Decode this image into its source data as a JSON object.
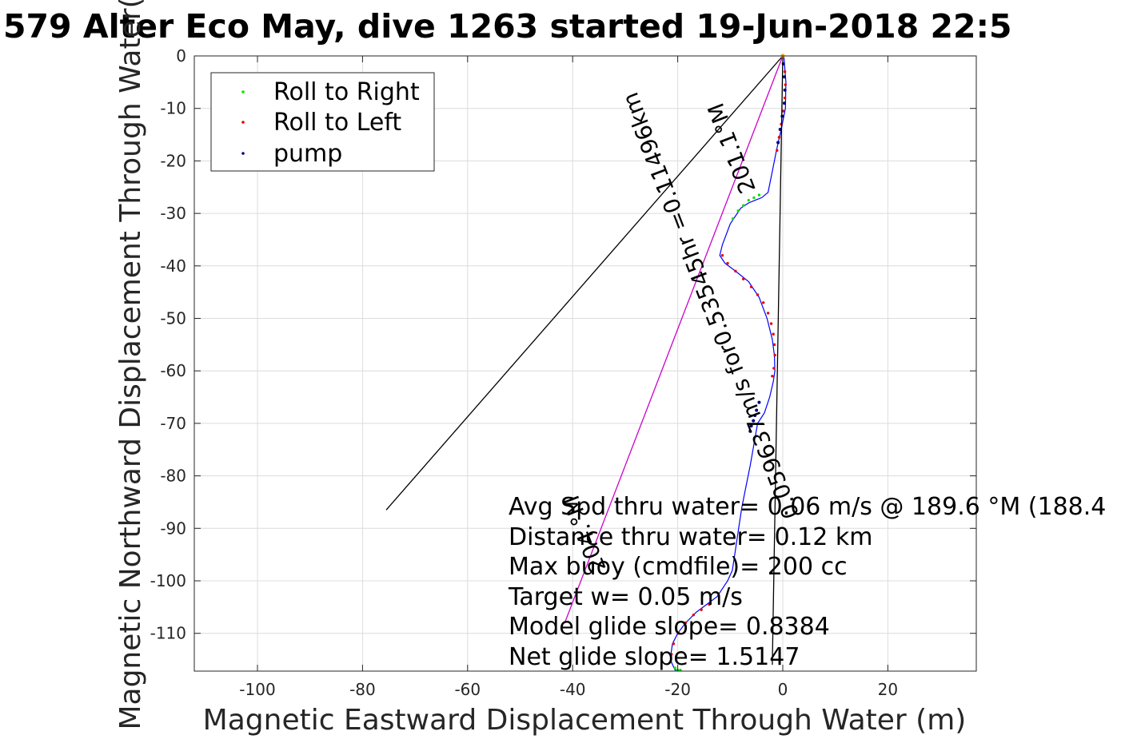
{
  "chart_data": {
    "type": "line",
    "title": "579 Alter Eco May, dive 1263 started 19-Jun-2018 22:5",
    "xlabel": "Magnetic Eastward Displacement Through Water (m)",
    "ylabel": "Magnetic Northward Displacement Through Water(",
    "xlim": [
      -112,
      37
    ],
    "ylim": [
      -117,
      0
    ],
    "xticks": [
      -100,
      -80,
      -60,
      -40,
      -20,
      0,
      20
    ],
    "yticks": [
      0,
      -10,
      -20,
      -30,
      -40,
      -50,
      -60,
      -70,
      -80,
      -90,
      -100,
      -110
    ],
    "grid": true,
    "legend": {
      "placement": "top-left",
      "entries": [
        {
          "label": "Roll to Right",
          "color": "#00e600"
        },
        {
          "label": "Roll to Left",
          "color": "#e60000"
        },
        {
          "label": "pump",
          "color": "#000080"
        }
      ]
    },
    "colors": {
      "track": "#0000ff",
      "magenta": "#cc00cc",
      "black": "#000000"
    },
    "series": [
      {
        "kind": "track",
        "x": [
          0.2,
          0.6,
          0.5,
          -0.3,
          -1.2,
          -2.0,
          -2.8,
          -4.0,
          -5.3,
          -6.5,
          -8.0,
          -10.0,
          -11.5,
          -12.0,
          -11.0,
          -9.0,
          -6.5,
          -4.5,
          -3.0,
          -2.0,
          -1.6,
          -1.5,
          -1.8,
          -2.5,
          -3.5,
          -4.8,
          -5.5,
          -6.2,
          -7.0,
          -7.8,
          -8.4,
          -9.0,
          -9.6,
          -10.5,
          -11.5,
          -12.5,
          -14.5,
          -16.5,
          -18.5,
          -20.0,
          -21.0,
          -21.3,
          -21.2,
          -20.5,
          -20.0
        ],
        "y": [
          0,
          -5,
          -10,
          -14,
          -18,
          -22,
          -26,
          -27,
          -27.5,
          -28,
          -29,
          -32,
          -36,
          -38,
          -39.5,
          -41,
          -43,
          -46,
          -50,
          -54,
          -57,
          -60,
          -62,
          -65,
          -68,
          -70,
          -74,
          -78,
          -82,
          -86,
          -90,
          -94,
          -98,
          -100,
          -101.5,
          -103,
          -104.5,
          -106,
          -108,
          -110,
          -112,
          -114,
          -115.5,
          -117,
          -117
        ]
      },
      {
        "kind": "roll-right",
        "x": [
          -4.5,
          -5.5,
          -6.5,
          -7.5,
          -8.5,
          -9.5,
          -20.5,
          -20.0,
          -19.5
        ],
        "y": [
          -26.5,
          -27,
          -27.5,
          -28.5,
          -29.5,
          -31,
          -116.6,
          -117,
          -117
        ]
      },
      {
        "kind": "roll-left",
        "x": [
          0.4,
          0.5,
          0.4,
          0.1,
          -0.3,
          -0.7,
          -1.1,
          -11.5,
          -10.5,
          -9.0,
          -7.5,
          -6.0,
          -4.8,
          -3.7,
          -2.8,
          -2.2,
          -1.8,
          -1.6,
          -1.5,
          -1.7,
          -2.0,
          -14.0,
          -15.5,
          -17.0,
          -18.5,
          -19.8,
          -20.8,
          -21.2
        ],
        "y": [
          -3,
          -5.5,
          -8,
          -10.5,
          -13,
          -15.5,
          -18,
          -38,
          -39.5,
          -41,
          -42.5,
          -44,
          -45.5,
          -47,
          -49,
          -51,
          -53,
          -55,
          -57,
          -59.5,
          -61,
          -104.5,
          -105.5,
          -106.5,
          -108,
          -110,
          -112,
          -114
        ]
      },
      {
        "kind": "pump",
        "x": [
          0.1,
          0.3,
          0.4,
          0.3,
          -0.1,
          -0.5,
          -0.9,
          -4.5,
          -5.0,
          -5.3,
          -5.6,
          -6.0,
          -6.2
        ],
        "y": [
          -1.5,
          -4,
          -6.5,
          -9,
          -11.5,
          -14,
          -16.5,
          -66,
          -67.5,
          -68.5,
          -69.5,
          -70.5,
          -71.5
        ]
      },
      {
        "kind": "magenta-line",
        "x": [
          0,
          -41.5
        ],
        "y": [
          0,
          -108
        ]
      },
      {
        "kind": "black-line",
        "x": [
          0,
          -75.5
        ],
        "y": [
          0,
          -86.5
        ]
      },
      {
        "kind": "black-line",
        "x": [
          0,
          -2.0
        ],
        "y": [
          0,
          -116
        ]
      }
    ],
    "annotations": [
      {
        "text": "201.1°M",
        "x": -9.5,
        "y": -17.5,
        "rotate": -111
      },
      {
        "text": "0.059637m/s for0.53545hr =0.11496km",
        "x": -13.5,
        "y": -47.5,
        "rotate": -111
      },
      {
        "text": "204.°M",
        "x": -37.5,
        "y": -91,
        "rotate": -111
      }
    ],
    "stats": [
      "Avg Spd thru water=  0.06 m/s @ 189.6 °M (188.4",
      "Distance thru water=  0.12 km",
      "Max buoy (cmdfile)= 200 cc",
      "Target w= 0.05 m/s",
      "Model glide slope= 0.8384",
      "Net glide slope= 1.5147"
    ]
  }
}
